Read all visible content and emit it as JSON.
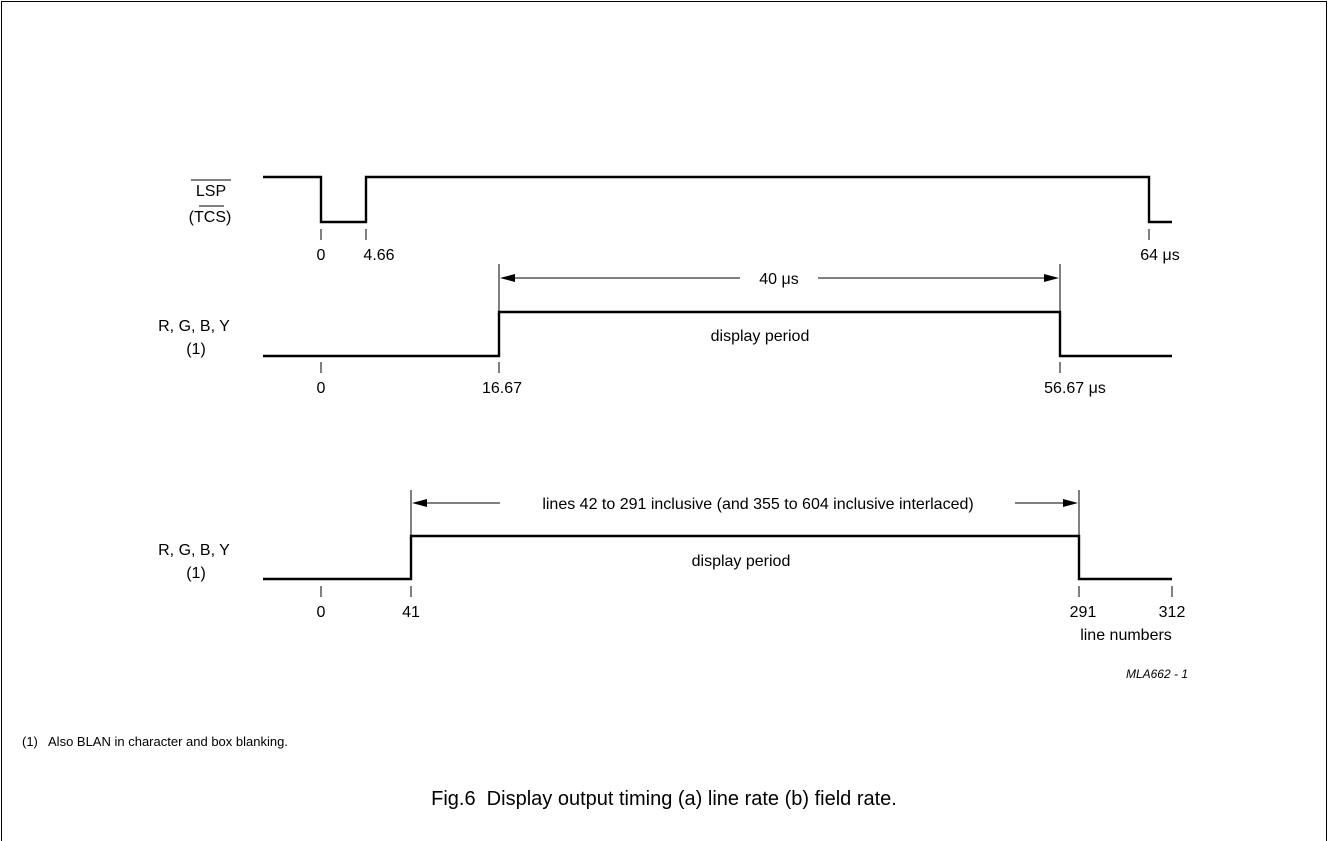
{
  "signals": {
    "lsp": {
      "name": "LSP",
      "alt_name": "(TCS)",
      "ticks": [
        "0",
        "4.66",
        "64 μs"
      ]
    },
    "line_rgb": {
      "name": "R, G, B, Y",
      "note_ref": "(1)",
      "span_label": "40 μs",
      "period_label": "display period",
      "ticks": [
        "0",
        "16.67",
        "56.67 μs"
      ]
    },
    "field_rgb": {
      "name": "R, G, B, Y",
      "note_ref": "(1)",
      "span_label": "lines 42 to 291 inclusive (and 355 to 604 inclusive interlaced)",
      "period_label": "display period",
      "ticks": [
        "0",
        "41",
        "291",
        "312"
      ],
      "axis_unit": "line numbers"
    }
  },
  "figure_code": "MLA662 - 1",
  "footnote": "(1)   Also BLAN in character and box blanking.",
  "caption": "Fig.6  Display output timing (a) line rate (b) field rate."
}
